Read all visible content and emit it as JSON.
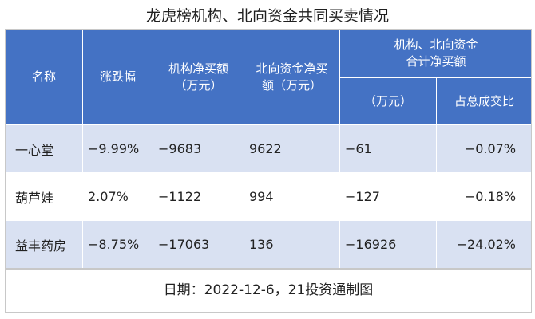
{
  "title": "龙虎榜机构、北向资金共同买卖情况",
  "headers": {
    "name": "名称",
    "change": "涨跌幅",
    "inst_line1": "机构净买额",
    "inst_line2": "（万元）",
    "north_line1": "北向资金净买",
    "north_line2": "额（万元）",
    "combined_line1": "机构、北向资金",
    "combined_line2": "合计净买额",
    "combined_sub_amount": "（万元）",
    "combined_sub_ratio": "占总成交比"
  },
  "rows": [
    {
      "name": "一心堂",
      "change": "−9.99%",
      "inst": "−9683",
      "north": "9622",
      "total": "−61",
      "ratio": "−0.07%"
    },
    {
      "name": "葫芦娃",
      "change": "2.07%",
      "inst": "−1122",
      "north": "994",
      "total": "−127",
      "ratio": "−0.18%"
    },
    {
      "name": "益丰药房",
      "change": "−8.75%",
      "inst": "−17063",
      "north": "136",
      "total": "−16926",
      "ratio": "−24.02%"
    }
  ],
  "footer": "日期：2022-12-6，21投资通制图",
  "colors": {
    "header_bg": "#4472c4",
    "row_alt_bg": "#d9e1f2",
    "row_bg": "#ffffff"
  }
}
